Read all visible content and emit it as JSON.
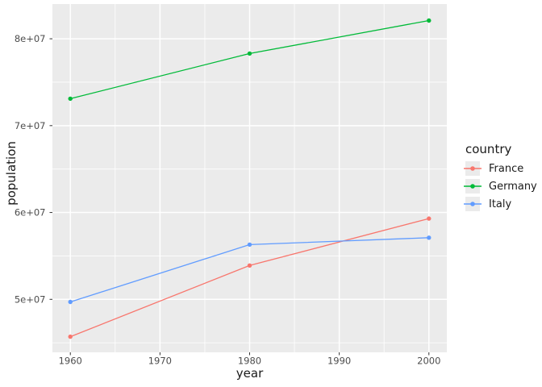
{
  "chart_data": {
    "type": "line",
    "title": "",
    "xlabel": "year",
    "ylabel": "population",
    "x": [
      1960,
      1980,
      2000
    ],
    "series": [
      {
        "name": "France",
        "color": "#F8766D",
        "values": [
          45700000,
          53900000,
          59300000
        ]
      },
      {
        "name": "Germany",
        "color": "#00BA38",
        "values": [
          73100000,
          78300000,
          82100000
        ]
      },
      {
        "name": "Italy",
        "color": "#619CFF",
        "values": [
          49700000,
          56300000,
          57100000
        ]
      }
    ],
    "xlim": [
      1958,
      2002
    ],
    "ylim": [
      43900000,
      84000000
    ],
    "x_major_ticks": [
      1960,
      1970,
      1980,
      1990,
      2000
    ],
    "x_tick_labels": [
      "1960",
      "1970",
      "1980",
      "1990",
      "2000"
    ],
    "x_minor_ticks": [
      1965,
      1975,
      1985,
      1995
    ],
    "y_major_ticks": [
      50000000,
      60000000,
      70000000,
      80000000
    ],
    "y_tick_labels": [
      "5e+07",
      "6e+07",
      "7e+07",
      "8e+07"
    ],
    "y_minor_ticks": [
      45000000,
      55000000,
      65000000,
      75000000
    ],
    "grid": true,
    "legend": {
      "title": "country",
      "position": "right"
    },
    "style": {
      "panel_bg": "#EBEBEB",
      "grid_color": "#FFFFFF",
      "tick_mark_color": "#333333",
      "tick_label_color": "#4D4D4D",
      "axis_title_color": "#1A1A1A",
      "legend_key_bg": "#EBEBEB"
    }
  }
}
